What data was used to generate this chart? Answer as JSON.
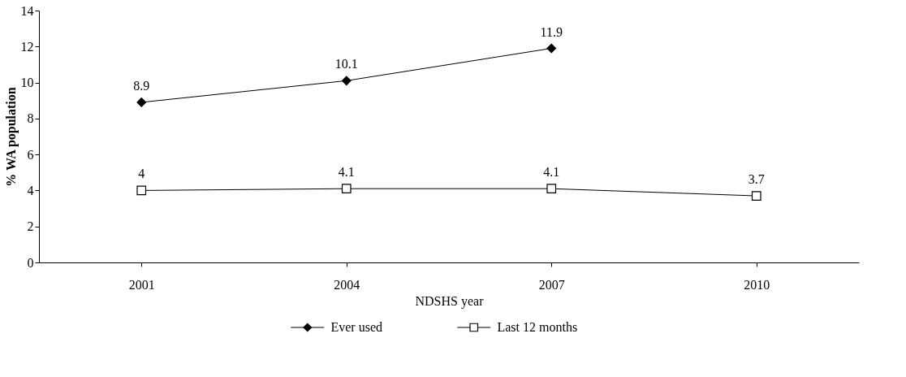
{
  "chart_data": {
    "type": "line",
    "xlabel": "NDSHS year",
    "ylabel": "% WA population",
    "categories": [
      "2001",
      "2004",
      "2007",
      "2010"
    ],
    "series": [
      {
        "name": "Ever used",
        "color": "#000000",
        "marker": "diamond",
        "values": [
          8.9,
          10.1,
          11.9,
          null
        ]
      },
      {
        "name": "Last 12 months",
        "color": "#000000",
        "marker": "square",
        "values": [
          4,
          4.1,
          4.1,
          3.7
        ]
      }
    ],
    "ylim": [
      0,
      14
    ],
    "yticks": [
      0,
      2,
      4,
      6,
      8,
      10,
      12,
      14
    ],
    "grid": false,
    "legend": "bottom",
    "data_labels": true
  }
}
